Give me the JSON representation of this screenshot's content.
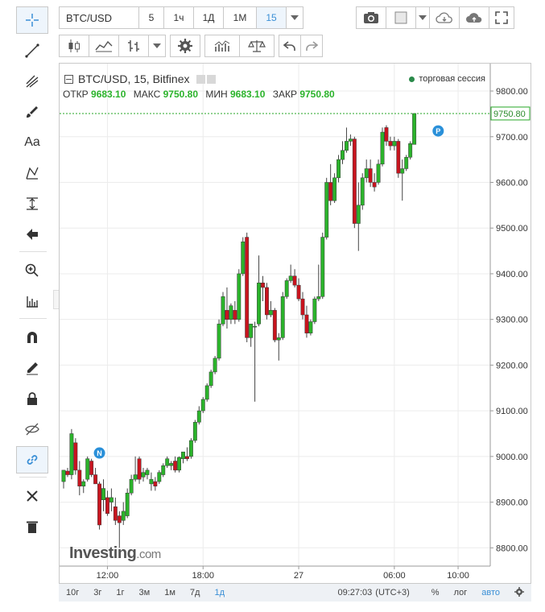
{
  "symbol_box": "BTC/USD",
  "intervals": [
    "5",
    "1ч",
    "1Д",
    "1М",
    "15"
  ],
  "legend": {
    "title": "BTC/USD, 15, Bitfinex",
    "session": "торговая сессия",
    "open_label": "ОТКР",
    "open": "9683.10",
    "high_label": "МАКС",
    "high": "9750.80",
    "low_label": "МИН",
    "low": "9683.10",
    "close_label": "ЗАКР",
    "close": "9750.80"
  },
  "brand": {
    "main": "Investing",
    "suffix": ".com"
  },
  "bottom": {
    "ranges": [
      "10г",
      "3г",
      "1г",
      "3м",
      "1м",
      "7д",
      "1д"
    ],
    "time": "09:27:03",
    "tz": "(UTC+3)",
    "percent": "%",
    "log": "лог",
    "auto": "авто"
  },
  "colors": {
    "up": "#2bb32b",
    "down": "#c8141e",
    "last_price_line": "#26a626",
    "event_badge": "#2a90d9"
  },
  "icons": {
    "left_toolbar": [
      "crosshair-icon",
      "trend-line-icon",
      "pitchfork-icon",
      "brush-icon",
      "text-icon",
      "pattern-icon",
      "measure-icon",
      "arrow-left-icon",
      "zoom-in-icon",
      "ruler-icon",
      "magnet-icon",
      "pencil-lock-icon",
      "lock-icon",
      "eye-hide-icon",
      "link-icon",
      "tools-icon",
      "trash-icon"
    ],
    "top_toolbar": [
      "camera-icon",
      "color-square-icon",
      "cloud-download-icon",
      "cloud-upload-icon",
      "fullscreen-icon"
    ],
    "second_toolbar": [
      "candles-icon",
      "indicators-icon",
      "bars-icon",
      "gear-icon",
      "studies-icon",
      "scales-icon",
      "undo-icon",
      "redo-icon"
    ]
  },
  "chart_data": {
    "type": "candlestick",
    "symbol": "BTC/USD",
    "interval": "15",
    "exchange": "Bitfinex",
    "ylim": [
      8760,
      9860
    ],
    "y_ticks": [
      8800,
      8900,
      9000,
      9100,
      9200,
      9300,
      9400,
      9500,
      9600,
      9700,
      9800
    ],
    "y_tick_labels": [
      "8800.00",
      "8900.00",
      "9000.00",
      "9100.00",
      "9200.00",
      "9300.00",
      "9400.00",
      "9500.00",
      "9600.00",
      "9700.00",
      "9800.00"
    ],
    "last_price": 9750.8,
    "last_price_label": "9750.80",
    "x_ticks": [
      {
        "label": "12:00",
        "index": 11
      },
      {
        "label": "18:00",
        "index": 35
      },
      {
        "label": "27",
        "index": 59
      },
      {
        "label": "06:00",
        "index": 83
      },
      {
        "label": "10:00",
        "index": 99
      }
    ],
    "grid": true,
    "events": [
      {
        "label": "N",
        "index": 9,
        "price": 8990
      },
      {
        "label": "P",
        "index": 94,
        "price": 9695
      }
    ],
    "candles": [
      {
        "o": 8945,
        "h": 8970,
        "l": 8930,
        "c": 8970
      },
      {
        "o": 8968,
        "h": 8975,
        "l": 8955,
        "c": 8960
      },
      {
        "o": 8960,
        "h": 9060,
        "l": 8950,
        "c": 9050
      },
      {
        "o": 9030,
        "h": 9040,
        "l": 8960,
        "c": 8970
      },
      {
        "o": 8970,
        "h": 8990,
        "l": 8915,
        "c": 8935
      },
      {
        "o": 8935,
        "h": 8950,
        "l": 8920,
        "c": 8945
      },
      {
        "o": 8950,
        "h": 9000,
        "l": 8945,
        "c": 8995
      },
      {
        "o": 8990,
        "h": 8995,
        "l": 8955,
        "c": 8960
      },
      {
        "o": 8960,
        "h": 8975,
        "l": 8940,
        "c": 8940
      },
      {
        "o": 8940,
        "h": 8945,
        "l": 8840,
        "c": 8850
      },
      {
        "o": 8905,
        "h": 8950,
        "l": 8880,
        "c": 8930
      },
      {
        "o": 8910,
        "h": 8925,
        "l": 8870,
        "c": 8875
      },
      {
        "o": 8900,
        "h": 8930,
        "l": 8880,
        "c": 8910
      },
      {
        "o": 8890,
        "h": 8910,
        "l": 8850,
        "c": 8860
      },
      {
        "o": 8870,
        "h": 8880,
        "l": 8800,
        "c": 8855
      },
      {
        "o": 8860,
        "h": 8900,
        "l": 8850,
        "c": 8880
      },
      {
        "o": 8870,
        "h": 8930,
        "l": 8865,
        "c": 8920
      },
      {
        "o": 8920,
        "h": 8960,
        "l": 8915,
        "c": 8950
      },
      {
        "o": 8950,
        "h": 9000,
        "l": 8945,
        "c": 8960
      },
      {
        "o": 8995,
        "h": 9000,
        "l": 8940,
        "c": 8950
      },
      {
        "o": 8955,
        "h": 8975,
        "l": 8945,
        "c": 8965
      },
      {
        "o": 8960,
        "h": 8975,
        "l": 8950,
        "c": 8970
      },
      {
        "o": 8940,
        "h": 8965,
        "l": 8925,
        "c": 8950
      },
      {
        "o": 8945,
        "h": 8955,
        "l": 8925,
        "c": 8935
      },
      {
        "o": 8945,
        "h": 8970,
        "l": 8940,
        "c": 8965
      },
      {
        "o": 8960,
        "h": 8985,
        "l": 8955,
        "c": 8980
      },
      {
        "o": 8980,
        "h": 9000,
        "l": 8975,
        "c": 8995
      },
      {
        "o": 8980,
        "h": 8990,
        "l": 8970,
        "c": 8985
      },
      {
        "o": 8990,
        "h": 9000,
        "l": 8965,
        "c": 8970
      },
      {
        "o": 8970,
        "h": 9000,
        "l": 8965,
        "c": 8998
      },
      {
        "o": 8995,
        "h": 9010,
        "l": 8985,
        "c": 9010
      },
      {
        "o": 9000,
        "h": 9020,
        "l": 8990,
        "c": 8995
      },
      {
        "o": 9000,
        "h": 9040,
        "l": 8995,
        "c": 9035
      },
      {
        "o": 9035,
        "h": 9080,
        "l": 9030,
        "c": 9075
      },
      {
        "o": 9075,
        "h": 9110,
        "l": 9070,
        "c": 9100
      },
      {
        "o": 9100,
        "h": 9130,
        "l": 9095,
        "c": 9125
      },
      {
        "o": 9125,
        "h": 9160,
        "l": 9120,
        "c": 9155
      },
      {
        "o": 9155,
        "h": 9190,
        "l": 9150,
        "c": 9185
      },
      {
        "o": 9185,
        "h": 9220,
        "l": 9180,
        "c": 9215
      },
      {
        "o": 9215,
        "h": 9300,
        "l": 9210,
        "c": 9290
      },
      {
        "o": 9290,
        "h": 9360,
        "l": 9285,
        "c": 9350
      },
      {
        "o": 9320,
        "h": 9370,
        "l": 9280,
        "c": 9300
      },
      {
        "o": 9300,
        "h": 9335,
        "l": 9290,
        "c": 9330
      },
      {
        "o": 9320,
        "h": 9340,
        "l": 9290,
        "c": 9300
      },
      {
        "o": 9300,
        "h": 9410,
        "l": 9295,
        "c": 9400
      },
      {
        "o": 9400,
        "h": 9480,
        "l": 9395,
        "c": 9470
      },
      {
        "o": 9480,
        "h": 9490,
        "l": 9250,
        "c": 9260
      },
      {
        "o": 9260,
        "h": 9290,
        "l": 9240,
        "c": 9290
      },
      {
        "o": 9285,
        "h": 9295,
        "l": 9120,
        "c": 9285
      },
      {
        "o": 9290,
        "h": 9440,
        "l": 9285,
        "c": 9380
      },
      {
        "o": 9380,
        "h": 9395,
        "l": 9340,
        "c": 9370
      },
      {
        "o": 9370,
        "h": 9380,
        "l": 9300,
        "c": 9310
      },
      {
        "o": 9310,
        "h": 9340,
        "l": 9305,
        "c": 9320
      },
      {
        "o": 9320,
        "h": 9325,
        "l": 9250,
        "c": 9255
      },
      {
        "o": 9255,
        "h": 9270,
        "l": 9210,
        "c": 9260
      },
      {
        "o": 9260,
        "h": 9360,
        "l": 9255,
        "c": 9350
      },
      {
        "o": 9350,
        "h": 9390,
        "l": 9345,
        "c": 9385
      },
      {
        "o": 9385,
        "h": 9420,
        "l": 9380,
        "c": 9395
      },
      {
        "o": 9395,
        "h": 9410,
        "l": 9370,
        "c": 9375
      },
      {
        "o": 9375,
        "h": 9390,
        "l": 9340,
        "c": 9345
      },
      {
        "o": 9345,
        "h": 9360,
        "l": 9300,
        "c": 9310
      },
      {
        "o": 9310,
        "h": 9330,
        "l": 9260,
        "c": 9270
      },
      {
        "o": 9270,
        "h": 9300,
        "l": 9265,
        "c": 9295
      },
      {
        "o": 9295,
        "h": 9350,
        "l": 9290,
        "c": 9345
      },
      {
        "o": 9345,
        "h": 9420,
        "l": 9340,
        "c": 9350
      },
      {
        "o": 9350,
        "h": 9490,
        "l": 9345,
        "c": 9480
      },
      {
        "o": 9480,
        "h": 9610,
        "l": 9475,
        "c": 9600
      },
      {
        "o": 9600,
        "h": 9640,
        "l": 9550,
        "c": 9560
      },
      {
        "o": 9560,
        "h": 9620,
        "l": 9555,
        "c": 9610
      },
      {
        "o": 9610,
        "h": 9660,
        "l": 9600,
        "c": 9650
      },
      {
        "o": 9650,
        "h": 9690,
        "l": 9640,
        "c": 9670
      },
      {
        "o": 9670,
        "h": 9720,
        "l": 9665,
        "c": 9690
      },
      {
        "o": 9690,
        "h": 9705,
        "l": 9680,
        "c": 9695
      },
      {
        "o": 9695,
        "h": 9700,
        "l": 9500,
        "c": 9510
      },
      {
        "o": 9510,
        "h": 9600,
        "l": 9450,
        "c": 9550
      },
      {
        "o": 9550,
        "h": 9620,
        "l": 9540,
        "c": 9610
      },
      {
        "o": 9610,
        "h": 9650,
        "l": 9600,
        "c": 9630
      },
      {
        "o": 9630,
        "h": 9650,
        "l": 9590,
        "c": 9600
      },
      {
        "o": 9600,
        "h": 9620,
        "l": 9580,
        "c": 9590
      },
      {
        "o": 9600,
        "h": 9650,
        "l": 9595,
        "c": 9640
      },
      {
        "o": 9640,
        "h": 9720,
        "l": 9635,
        "c": 9710
      },
      {
        "o": 9720,
        "h": 9725,
        "l": 9680,
        "c": 9690
      },
      {
        "o": 9690,
        "h": 9700,
        "l": 9670,
        "c": 9680
      },
      {
        "o": 9680,
        "h": 9700,
        "l": 9670,
        "c": 9690
      },
      {
        "o": 9690,
        "h": 9695,
        "l": 9610,
        "c": 9620
      },
      {
        "o": 9620,
        "h": 9650,
        "l": 9560,
        "c": 9630
      },
      {
        "o": 9630,
        "h": 9660,
        "l": 9625,
        "c": 9655
      },
      {
        "o": 9655,
        "h": 9690,
        "l": 9650,
        "c": 9685
      },
      {
        "o": 9683.1,
        "h": 9750.8,
        "l": 9683.1,
        "c": 9750.8
      }
    ]
  }
}
